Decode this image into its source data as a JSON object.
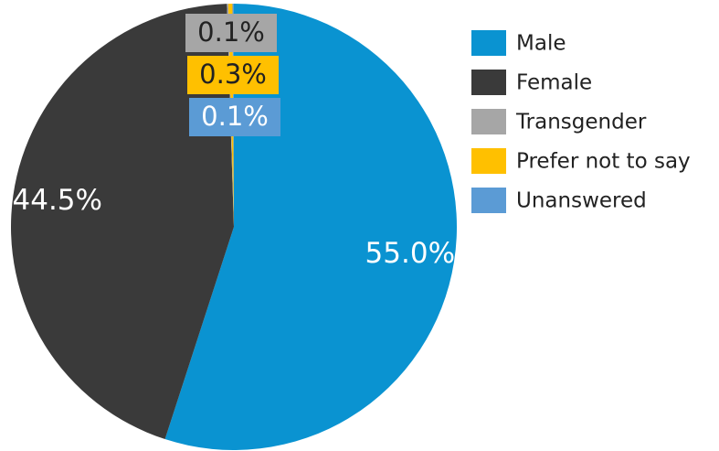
{
  "chart_data": {
    "type": "pie",
    "categories": [
      "Male",
      "Female",
      "Transgender",
      "Prefer not to say",
      "Unanswered"
    ],
    "values": [
      55.0,
      44.5,
      0.1,
      0.3,
      0.1
    ],
    "value_labels": [
      "55.0%",
      "44.5%",
      "0.1%",
      "0.3%",
      "0.1%"
    ],
    "colors": [
      "#0a93d1",
      "#3a3a3a",
      "#a6a6a6",
      "#ffc000",
      "#5b9bd5"
    ],
    "legend": "right"
  }
}
